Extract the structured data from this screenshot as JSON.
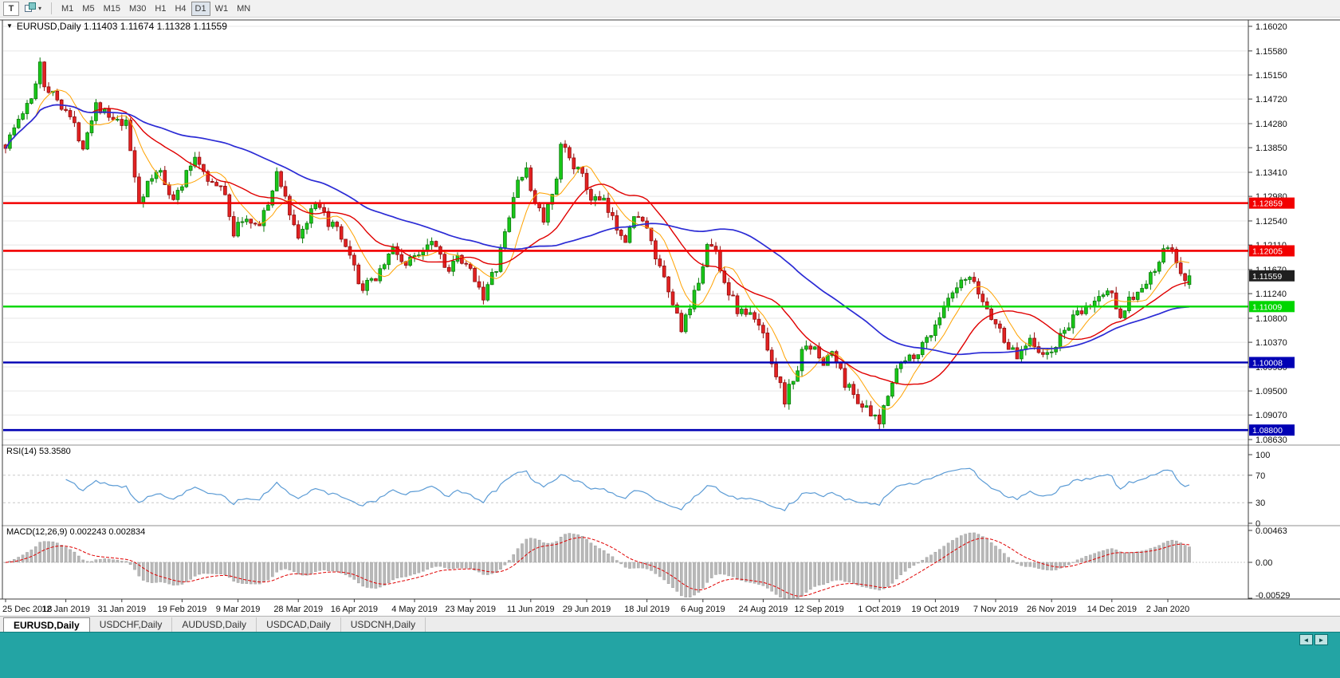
{
  "toolbar": {
    "tool_button_label": "T",
    "objects_caret": "▾",
    "timeframes": [
      "M1",
      "M5",
      "M15",
      "M30",
      "H1",
      "H4",
      "D1",
      "W1",
      "MN"
    ],
    "active_timeframe": "D1"
  },
  "chart": {
    "title": "EURUSD,Daily 1.11403 1.11674 1.11328 1.11559",
    "dropdown_glyph": "▼"
  },
  "indicators": {
    "rsi_label": "RSI(14) 53.3580",
    "macd_label": "MACD(12,26,9) 0.002243 0.002834"
  },
  "chart_data": {
    "type": "candlestick",
    "symbol": "EURUSD",
    "timeframe": "Daily",
    "ohlc": {
      "open": "1.11403",
      "high": "1.11674",
      "low": "1.11328",
      "close": "1.11559"
    },
    "y_axis_ticks": [
      "1.16020",
      "1.15580",
      "1.15150",
      "1.14720",
      "1.14280",
      "1.13850",
      "1.13410",
      "1.12980",
      "1.12540",
      "1.12110",
      "1.11670",
      "1.11240",
      "1.10800",
      "1.10370",
      "1.09930",
      "1.09500",
      "1.09070",
      "1.08630"
    ],
    "price_top": 1.1612,
    "price_bottom": 1.0856,
    "x_labels": [
      "25 Dec 2018",
      "12 Jan 2019",
      "31 Jan 2019",
      "19 Feb 2019",
      "9 Mar 2019",
      "28 Mar 2019",
      "16 Apr 2019",
      "4 May 2019",
      "23 May 2019",
      "11 Jun 2019",
      "29 Jun 2019",
      "18 Jul 2019",
      "6 Aug 2019",
      "24 Aug 2019",
      "12 Sep 2019",
      "1 Oct 2019",
      "19 Oct 2019",
      "7 Nov 2019",
      "26 Nov 2019",
      "14 Dec 2019",
      "2 Jan 2020"
    ],
    "candle_count": 276,
    "price_path": [
      [
        0,
        1.139
      ],
      [
        3,
        1.1435
      ],
      [
        6,
        1.147
      ],
      [
        8,
        1.154
      ],
      [
        9,
        1.15
      ],
      [
        11,
        1.148
      ],
      [
        14,
        1.1455
      ],
      [
        18,
        1.139
      ],
      [
        21,
        1.1465
      ],
      [
        25,
        1.143
      ],
      [
        28,
        1.1425
      ],
      [
        31,
        1.129
      ],
      [
        34,
        1.133
      ],
      [
        36,
        1.1345
      ],
      [
        39,
        1.129
      ],
      [
        41,
        1.132
      ],
      [
        44,
        1.137
      ],
      [
        48,
        1.132
      ],
      [
        51,
        1.1305
      ],
      [
        53,
        1.123
      ],
      [
        55,
        1.126
      ],
      [
        58,
        1.124
      ],
      [
        62,
        1.13
      ],
      [
        63,
        1.1345
      ],
      [
        66,
        1.127
      ],
      [
        68,
        1.1225
      ],
      [
        72,
        1.128
      ],
      [
        77,
        1.1235
      ],
      [
        80,
        1.1185
      ],
      [
        83,
        1.113
      ],
      [
        86,
        1.1155
      ],
      [
        90,
        1.1205
      ],
      [
        93,
        1.1175
      ],
      [
        95,
        1.119
      ],
      [
        99,
        1.1225
      ],
      [
        103,
        1.1165
      ],
      [
        105,
        1.1185
      ],
      [
        109,
        1.1155
      ],
      [
        111,
        1.112
      ],
      [
        114,
        1.117
      ],
      [
        117,
        1.126
      ],
      [
        119,
        1.133
      ],
      [
        121,
        1.134
      ],
      [
        122,
        1.131
      ],
      [
        125,
        1.1255
      ],
      [
        128,
        1.132
      ],
      [
        129,
        1.139
      ],
      [
        131,
        1.137
      ],
      [
        134,
        1.133
      ],
      [
        136,
        1.1295
      ],
      [
        139,
        1.1285
      ],
      [
        141,
        1.1255
      ],
      [
        144,
        1.1225
      ],
      [
        147,
        1.127
      ],
      [
        149,
        1.1235
      ],
      [
        152,
        1.1165
      ],
      [
        154,
        1.1125
      ],
      [
        157,
        1.1065
      ],
      [
        159,
        1.109
      ],
      [
        161,
        1.115
      ],
      [
        163,
        1.121
      ],
      [
        165,
        1.12
      ],
      [
        167,
        1.1145
      ],
      [
        170,
        1.1095
      ],
      [
        173,
        1.1085
      ],
      [
        176,
        1.1055
      ],
      [
        178,
        1.1005
      ],
      [
        181,
        1.0935
      ],
      [
        184,
        1.099
      ],
      [
        186,
        1.104
      ],
      [
        189,
        1.101
      ],
      [
        190,
        1.1
      ],
      [
        192,
        1.102
      ],
      [
        195,
        1.0965
      ],
      [
        198,
        1.0935
      ],
      [
        201,
        1.0905
      ],
      [
        203,
        1.089
      ],
      [
        205,
        1.095
      ],
      [
        207,
        1.099
      ],
      [
        210,
        1.101
      ],
      [
        213,
        1.103
      ],
      [
        216,
        1.107
      ],
      [
        219,
        1.111
      ],
      [
        222,
        1.114
      ],
      [
        224,
        1.115
      ],
      [
        227,
        1.111
      ],
      [
        230,
        1.107
      ],
      [
        233,
        1.103
      ],
      [
        235,
        1.101
      ],
      [
        238,
        1.105
      ],
      [
        241,
        1.101
      ],
      [
        243,
        1.102
      ],
      [
        247,
        1.107
      ],
      [
        250,
        1.109
      ],
      [
        253,
        1.111
      ],
      [
        256,
        1.113
      ],
      [
        257,
        1.112
      ],
      [
        259,
        1.109
      ],
      [
        262,
        1.112
      ],
      [
        265,
        1.114
      ],
      [
        268,
        1.118
      ],
      [
        270,
        1.121
      ],
      [
        272,
        1.118
      ],
      [
        274,
        1.114
      ],
      [
        275,
        1.1156
      ]
    ],
    "horizontal_lines": [
      {
        "price": 1.12859,
        "label": "1.12859",
        "color": "#f20000",
        "width": 2.6
      },
      {
        "price": 1.12005,
        "label": "1.12005",
        "color": "#f20000",
        "width": 2.6
      },
      {
        "price": 1.11009,
        "label": "1.11009",
        "color": "#00d600",
        "width": 2.4
      },
      {
        "price": 1.10008,
        "label": "1.10008",
        "color": "#0000b4",
        "width": 2.4
      },
      {
        "price": 1.088,
        "label": "1.08800",
        "color": "#0000b4",
        "width": 2.6
      }
    ],
    "current_price": {
      "value": 1.11559,
      "label": "1.11559"
    },
    "rsi": {
      "period": 14,
      "value": 53.358,
      "axis_ticks": [
        "100",
        "70",
        "30",
        "0"
      ],
      "levels": [
        70,
        30
      ]
    },
    "macd": {
      "fast": 12,
      "slow": 26,
      "signal": 9,
      "values": [
        0.002243,
        0.002834
      ],
      "axis_ticks": [
        "0.00463",
        "0.00",
        "-0.00529"
      ],
      "axis_values": [
        0.00463,
        0,
        -0.00529
      ]
    },
    "colors": {
      "up": "#19c819",
      "up_stroke": "#0a780a",
      "down": "#e32222",
      "down_stroke": "#900d0d",
      "ma_fast": "#ffa200",
      "ma_mid": "#e00000",
      "ma_slow": "#2b2bd5",
      "rsi": "#5b9bd5",
      "macd_hist": "#b8b8b8",
      "macd_hist_stroke": "#979797",
      "macd_signal": "#e00000",
      "grid": "#e7e7e7",
      "current_label_bg": "#1f1f1f"
    }
  },
  "tabs": {
    "items": [
      "EURUSD,Daily",
      "USDCHF,Daily",
      "AUDUSD,Daily",
      "USDCAD,Daily",
      "USDCNH,Daily"
    ],
    "active": "EURUSD,Daily"
  },
  "scrollbar": {
    "left_arrow": "◄",
    "right_arrow": "►"
  }
}
